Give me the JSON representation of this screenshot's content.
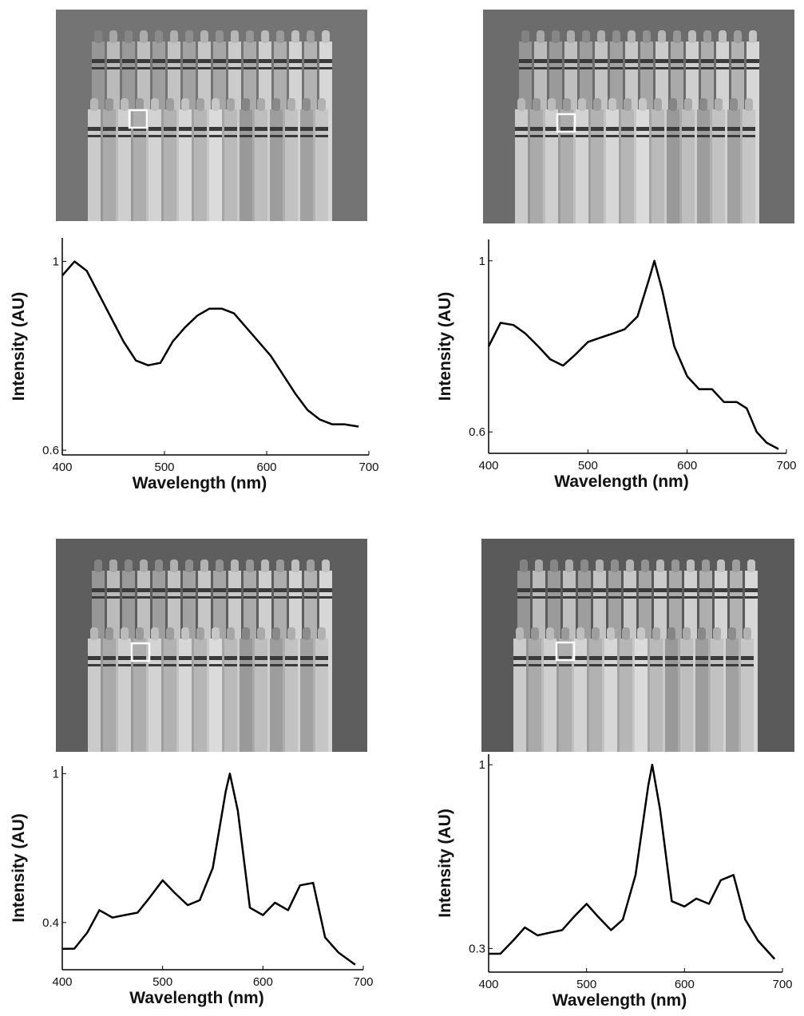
{
  "chart_data": [
    {
      "type": "line",
      "xlabel": "Wavelength (nm)",
      "ylabel": "Intensity (AU)",
      "color": "#000000",
      "x": [
        400,
        412,
        424,
        436,
        448,
        460,
        472,
        484,
        496,
        508,
        520,
        532,
        544,
        556,
        568,
        580,
        592,
        604,
        616,
        628,
        640,
        652,
        664,
        676,
        690
      ],
      "values": [
        0.97,
        1.0,
        0.98,
        0.93,
        0.88,
        0.83,
        0.79,
        0.78,
        0.785,
        0.83,
        0.86,
        0.885,
        0.9,
        0.9,
        0.89,
        0.86,
        0.83,
        0.8,
        0.76,
        0.72,
        0.685,
        0.665,
        0.655,
        0.655,
        0.65
      ],
      "xlim": [
        400,
        700
      ],
      "ylim": [
        0.59,
        1.05
      ],
      "xticks": [
        400,
        500,
        600,
        700
      ],
      "yticks": [
        0.6,
        1
      ]
    },
    {
      "type": "line",
      "xlabel": "Wavelength (nm)",
      "ylabel": "Intensity (AU)",
      "color": "#000000",
      "x": [
        400,
        412,
        425,
        437,
        450,
        462,
        475,
        487,
        500,
        512,
        525,
        537,
        550,
        562,
        567,
        575,
        587,
        600,
        612,
        625,
        637,
        650,
        660,
        670,
        680,
        692
      ],
      "values": [
        0.8,
        0.855,
        0.85,
        0.83,
        0.8,
        0.77,
        0.755,
        0.78,
        0.81,
        0.82,
        0.83,
        0.84,
        0.87,
        0.96,
        1.0,
        0.93,
        0.8,
        0.73,
        0.7,
        0.7,
        0.67,
        0.67,
        0.655,
        0.6,
        0.575,
        0.56
      ],
      "xlim": [
        400,
        700
      ],
      "ylim": [
        0.55,
        1.05
      ],
      "xticks": [
        400,
        500,
        600,
        700
      ],
      "yticks": [
        0.6,
        1
      ]
    },
    {
      "type": "line",
      "xlabel": "Wavelength (nm)",
      "ylabel": "Intensity (AU)",
      "color": "#000000",
      "x": [
        400,
        412,
        425,
        437,
        450,
        462,
        475,
        487,
        500,
        512,
        525,
        537,
        550,
        563,
        567,
        575,
        587,
        600,
        612,
        625,
        637,
        650,
        662,
        675,
        692
      ],
      "values": [
        0.294,
        0.295,
        0.36,
        0.45,
        0.42,
        0.43,
        0.44,
        0.5,
        0.57,
        0.52,
        0.47,
        0.49,
        0.62,
        0.93,
        1.0,
        0.85,
        0.46,
        0.43,
        0.48,
        0.45,
        0.55,
        0.56,
        0.34,
        0.28,
        0.23
      ],
      "xlim": [
        400,
        700
      ],
      "ylim": [
        0.21,
        1.03
      ],
      "xticks": [
        400,
        500,
        600,
        700
      ],
      "yticks": [
        0.4,
        1
      ]
    },
    {
      "type": "line",
      "xlabel": "Wavelength (nm)",
      "ylabel": "Intensity (AU)",
      "color": "#000000",
      "x": [
        400,
        412,
        425,
        437,
        450,
        462,
        475,
        487,
        500,
        512,
        525,
        537,
        550,
        563,
        567,
        575,
        587,
        600,
        612,
        625,
        637,
        650,
        662,
        675,
        692
      ],
      "values": [
        0.28,
        0.28,
        0.33,
        0.38,
        0.35,
        0.36,
        0.37,
        0.42,
        0.47,
        0.42,
        0.37,
        0.41,
        0.58,
        0.92,
        1.0,
        0.83,
        0.48,
        0.46,
        0.49,
        0.47,
        0.56,
        0.58,
        0.41,
        0.33,
        0.26
      ],
      "xlim": [
        400,
        700
      ],
      "ylim": [
        0.21,
        1.04
      ],
      "xticks": [
        400,
        500,
        600,
        700
      ],
      "yticks": [
        0.3,
        1
      ]
    }
  ]
}
